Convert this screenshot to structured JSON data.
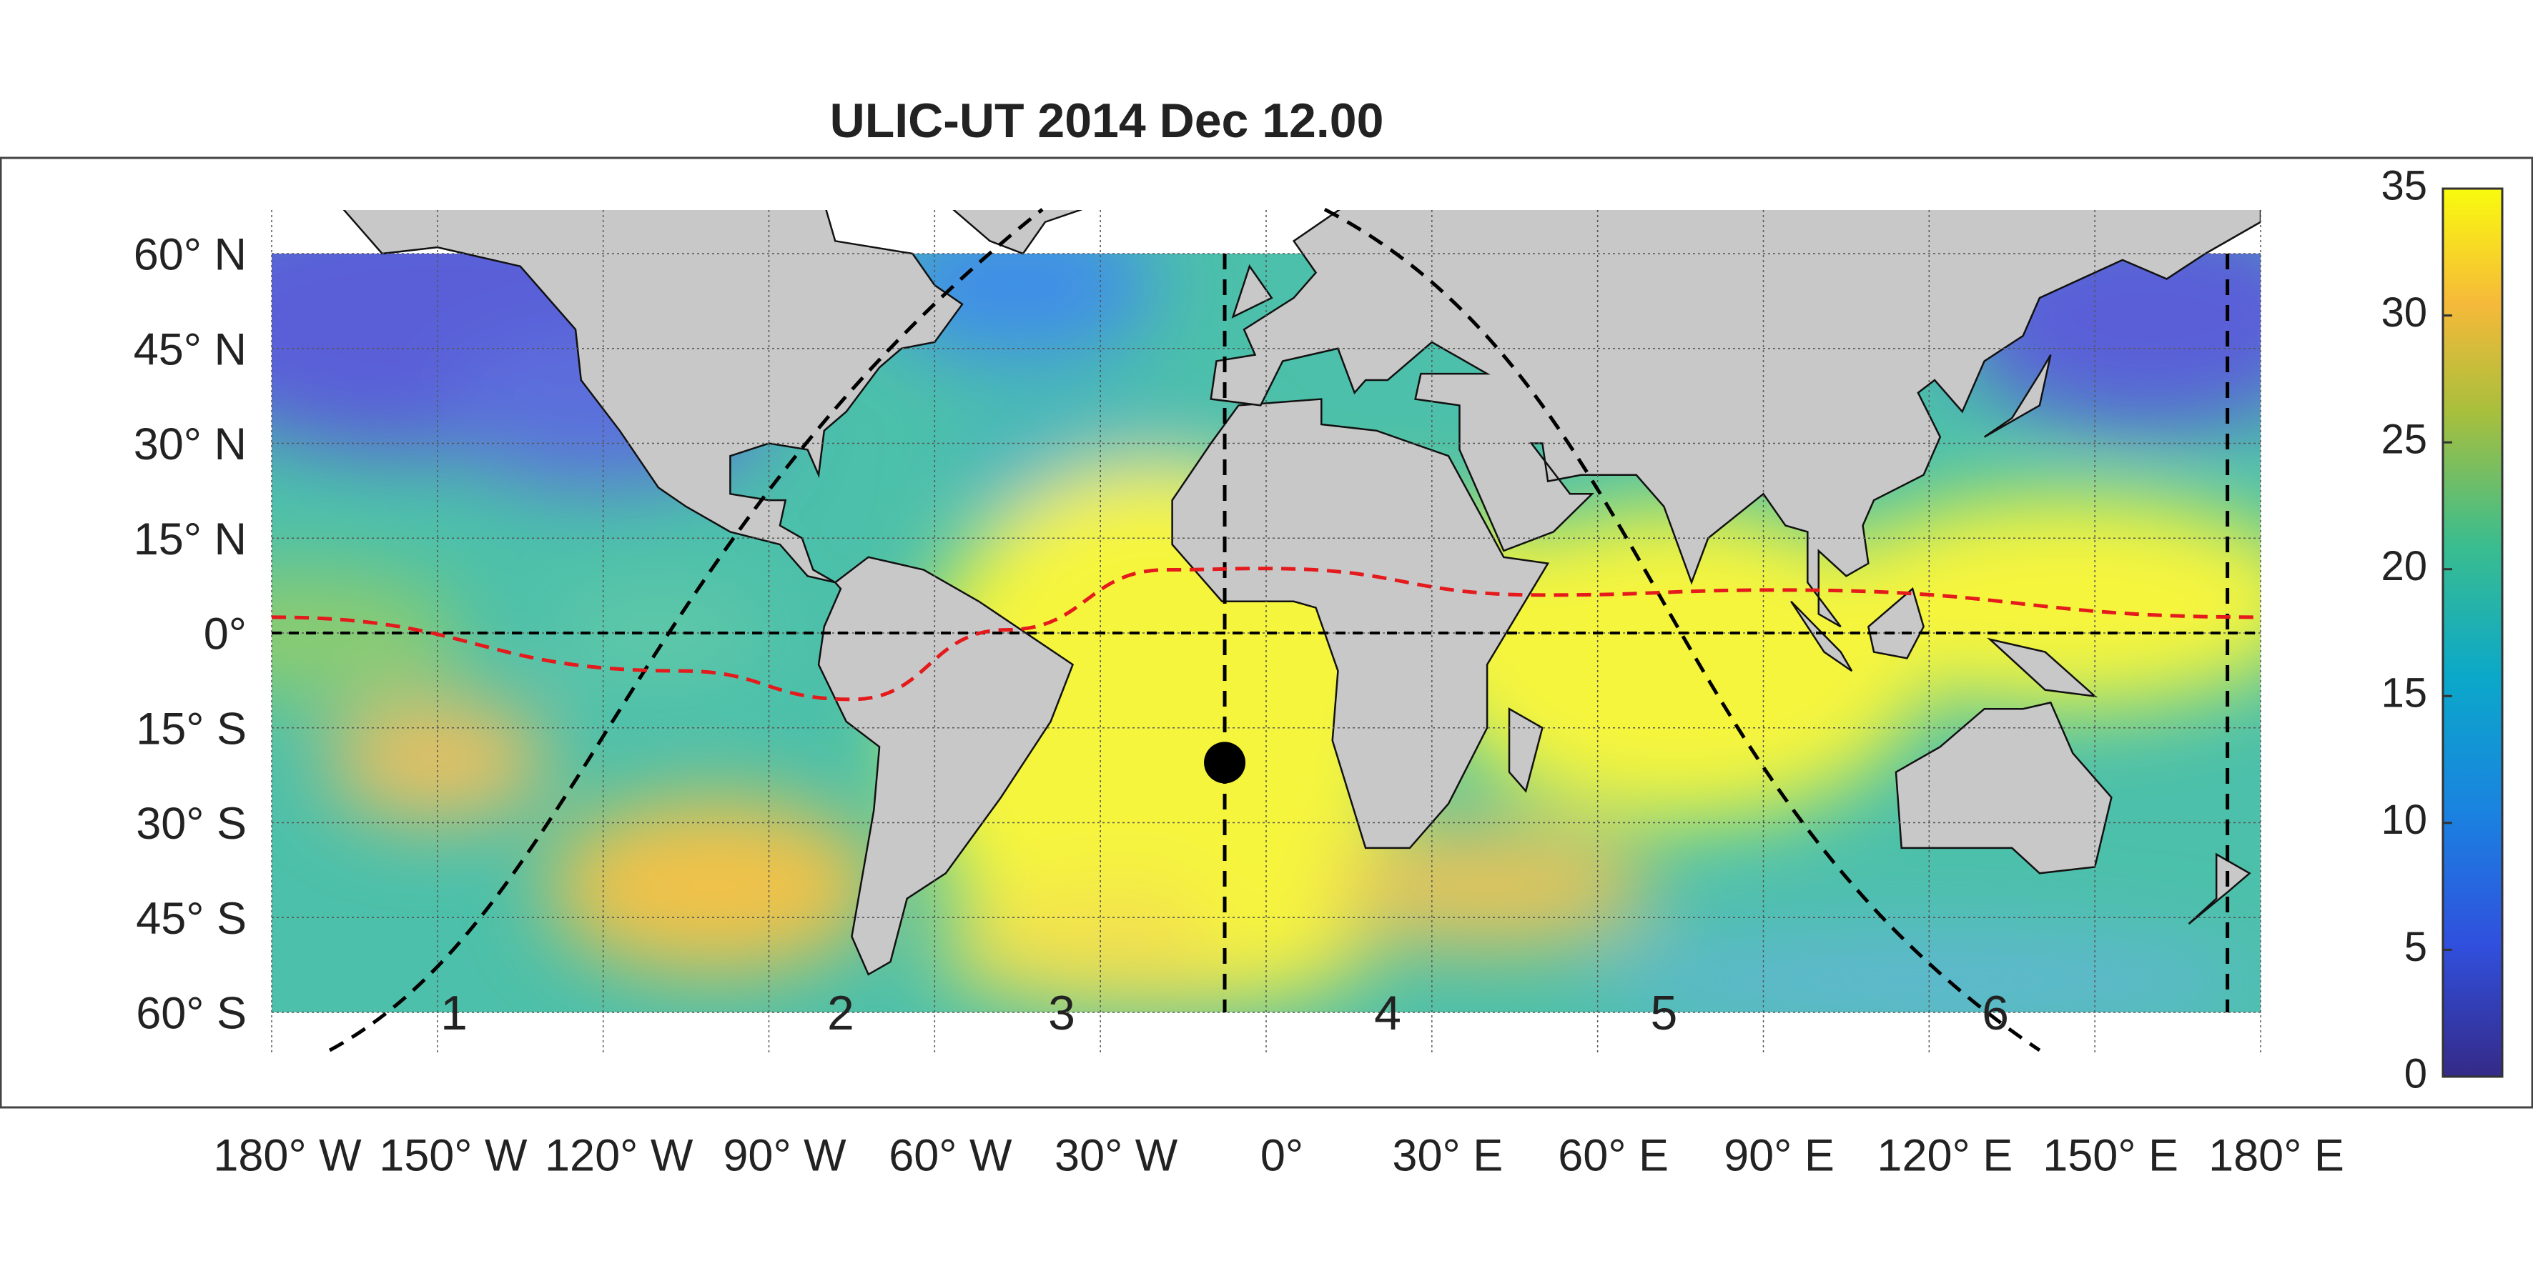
{
  "title": "ULIC-UT 2014 Dec 12.00",
  "latitude_labels": [
    "60° N",
    "45° N",
    "30° N",
    "15° N",
    "0°",
    "15° S",
    "30° S",
    "45° S",
    "60° S"
  ],
  "longitude_labels": [
    "180° W",
    "150° W",
    "120° W",
    "90° W",
    "60° W",
    "30° W",
    "0°",
    "30° E",
    "60° E",
    "90° E",
    "120° E",
    "150° E",
    "180° E"
  ],
  "zone_labels": [
    "1",
    "2",
    "3",
    "4",
    "5",
    "6"
  ],
  "colorbar": {
    "lim": [
      0,
      35
    ],
    "ticks": [
      0,
      5,
      10,
      15,
      20,
      25,
      30,
      35
    ]
  }
}
